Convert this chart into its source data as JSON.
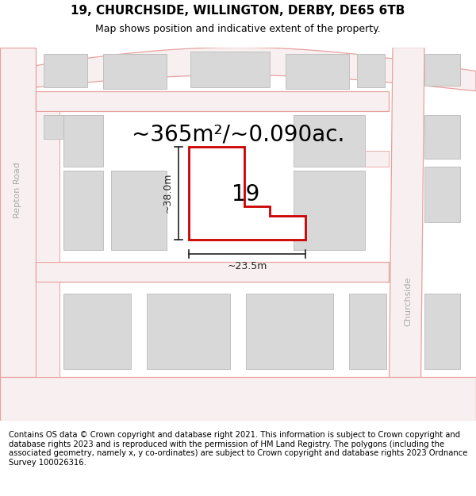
{
  "title_line1": "19, CHURCHSIDE, WILLINGTON, DERBY, DE65 6TB",
  "title_line2": "Map shows position and indicative extent of the property.",
  "footer_text": "Contains OS data © Crown copyright and database right 2021. This information is subject to Crown copyright and database rights 2023 and is reproduced with the permission of HM Land Registry. The polygons (including the associated geometry, namely x, y co-ordinates) are subject to Crown copyright and database rights 2023 Ordnance Survey 100026316.",
  "area_label": "~365m²/~0.090ac.",
  "width_label": "~23.5m",
  "height_label": "~38.0m",
  "number_label": "19",
  "map_bg": "#f0f0f0",
  "road_line_color": "#e8a0a0",
  "road_fill_color": "#f8f0f0",
  "building_fill": "#d8d8d8",
  "building_edge": "#c0c0c0",
  "plot_fill": "#ffffff",
  "plot_edge": "#cc0000",
  "dim_color": "#222222",
  "road_text_color": "#aaaaaa",
  "title_fontsize": 11,
  "subtitle_fontsize": 9,
  "footer_fontsize": 7.2,
  "area_fontsize": 20,
  "label_fontsize": 9,
  "number_fontsize": 20,
  "road_label_fontsize": 8
}
